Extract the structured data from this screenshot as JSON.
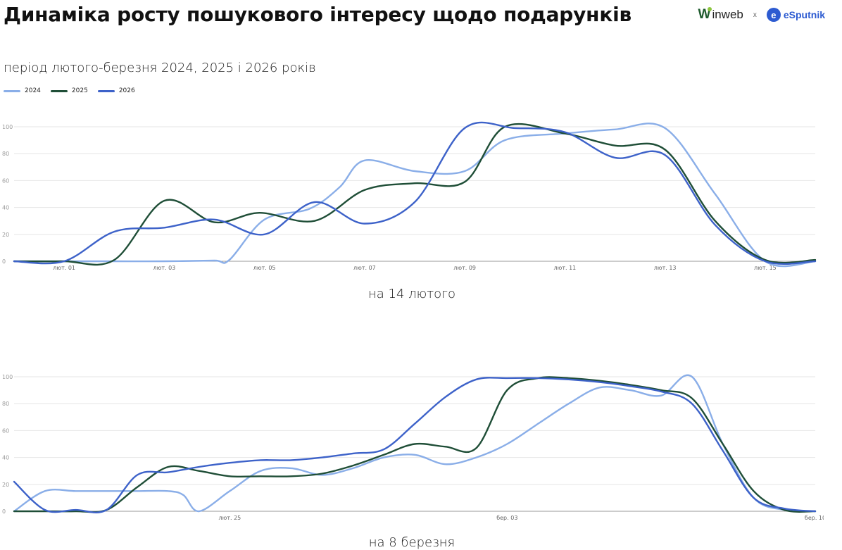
{
  "header": {
    "title": "Динаміка росту пошукового інтересу щодо подарунків",
    "subtitle": "період лютого-березня 2024, 2025 і 2026 років",
    "logo_inweb": "inweb",
    "logo_x": "x",
    "logo_esputnik": "eSputnik"
  },
  "legend": [
    {
      "name": "2024",
      "color": "#8aaee8"
    },
    {
      "name": "2025",
      "color": "#1f4e37"
    },
    {
      "name": "2026",
      "color": "#3d62c9"
    }
  ],
  "chart_data": [
    {
      "type": "line",
      "caption": "на 14 лютого",
      "ylim": [
        0,
        100
      ],
      "yticks": [
        0,
        20,
        40,
        60,
        80,
        100
      ],
      "x_range": [
        0,
        16
      ],
      "x_ticks": [
        {
          "x": 1,
          "label": "лют. 01"
        },
        {
          "x": 3,
          "label": "лют. 03"
        },
        {
          "x": 5,
          "label": "лют. 05"
        },
        {
          "x": 7,
          "label": "лют. 07"
        },
        {
          "x": 9,
          "label": "лют. 09"
        },
        {
          "x": 11,
          "label": "лют. 11"
        },
        {
          "x": 13,
          "label": "лют. 13"
        },
        {
          "x": 15,
          "label": "лют. 15"
        }
      ],
      "grid": true,
      "legend_position": "top-left",
      "series": [
        {
          "name": "2024",
          "color": "#8aaee8",
          "x": [
            0,
            1,
            2,
            3,
            4,
            4.3,
            5,
            5.9,
            6.5,
            7,
            8,
            9,
            9.8,
            11,
            12,
            13,
            14,
            15,
            16
          ],
          "values": [
            0,
            0,
            0,
            0,
            0.5,
            1,
            31,
            39,
            55,
            75,
            67,
            67,
            90,
            95,
            98,
            99,
            50,
            0,
            0
          ]
        },
        {
          "name": "2025",
          "color": "#1f4e37",
          "x": [
            0,
            1,
            2,
            3,
            4,
            4.9,
            6,
            7,
            8,
            9,
            9.8,
            11,
            12,
            13,
            14,
            15,
            16
          ],
          "values": [
            0,
            0,
            1,
            45,
            29,
            36,
            30,
            53,
            58,
            59,
            100,
            95,
            86,
            83,
            30,
            1,
            1
          ]
        },
        {
          "name": "2026",
          "color": "#3d62c9",
          "x": [
            0,
            1,
            2,
            3,
            4,
            5,
            6,
            7,
            8,
            9,
            10,
            11,
            12,
            13,
            14,
            15,
            16
          ],
          "values": [
            0,
            0,
            22,
            25,
            31,
            20,
            44,
            28,
            44,
            99,
            99,
            96,
            77,
            79,
            27,
            0,
            0
          ]
        }
      ]
    },
    {
      "type": "line",
      "caption": "на 8 березня",
      "ylim": [
        0,
        100
      ],
      "yticks": [
        0,
        20,
        40,
        60,
        80,
        100
      ],
      "x_range": [
        0,
        26
      ],
      "x_ticks": [
        {
          "x": 7,
          "label": "лют. 25"
        },
        {
          "x": 16,
          "label": "бер. 03"
        },
        {
          "x": 26,
          "label": "бер. 10"
        }
      ],
      "grid": true,
      "legend_position": "top-left",
      "series": [
        {
          "name": "2024",
          "color": "#8aaee8",
          "x": [
            0,
            1,
            2,
            3,
            4,
            5,
            5.5,
            6,
            7,
            8,
            9,
            10,
            11,
            12,
            13,
            14,
            15,
            16,
            17,
            18,
            19,
            20,
            21,
            22,
            23,
            24,
            25,
            26
          ],
          "values": [
            0,
            15,
            15,
            15,
            15,
            15,
            12,
            0,
            15,
            30,
            32,
            27,
            32,
            40,
            42,
            35,
            40,
            50,
            65,
            80,
            92,
            90,
            86,
            100,
            50,
            10,
            1,
            0
          ]
        },
        {
          "name": "2025",
          "color": "#1f4e37",
          "x": [
            0,
            1,
            2,
            3,
            4,
            5,
            6,
            7,
            8,
            9,
            10,
            11,
            12,
            13,
            14,
            15,
            16,
            17,
            18,
            19,
            20,
            21,
            22,
            23,
            24,
            25,
            26
          ],
          "values": [
            0,
            0,
            0,
            1,
            18,
            33,
            30,
            26,
            26,
            26,
            28,
            34,
            42,
            50,
            48,
            47,
            90,
            99,
            99,
            97,
            94,
            90,
            84,
            50,
            15,
            1,
            0
          ]
        },
        {
          "name": "2026",
          "color": "#3d62c9",
          "x": [
            0,
            1,
            2,
            3,
            4,
            5,
            6,
            7,
            8,
            9,
            10,
            11,
            12,
            13,
            14,
            15,
            16,
            17,
            18,
            19,
            20,
            21,
            22,
            23,
            24,
            25,
            26
          ],
          "values": [
            22,
            1,
            1,
            1,
            27,
            29,
            33,
            36,
            38,
            38,
            40,
            43,
            46,
            65,
            85,
            98,
            99,
            99,
            98,
            96,
            93,
            89,
            80,
            45,
            10,
            2,
            0
          ]
        }
      ]
    }
  ]
}
